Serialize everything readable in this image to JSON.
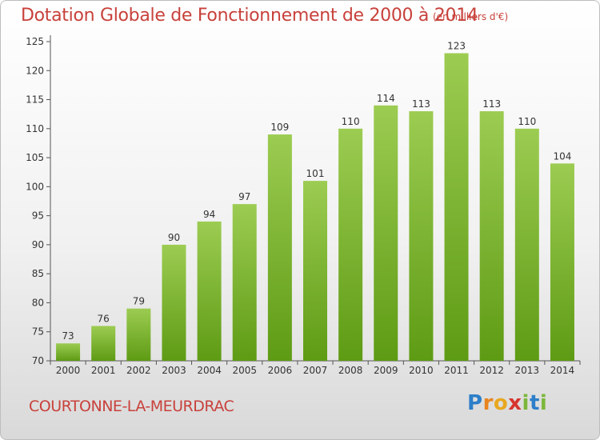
{
  "title": "Dotation Globale de Fonctionnement de 2000 à 2014",
  "unit_note": "(en milliers d'€)",
  "commune": "COURTONNE-LA-MEURDRAC",
  "brand": {
    "letters": [
      "P",
      "r",
      "o",
      "x",
      "i",
      "t",
      "i"
    ],
    "colors": [
      "#2e7fc9",
      "#e8851e",
      "#e8a81e",
      "#d7342f",
      "#7bb73a",
      "#2e7fc9",
      "#7bb73a"
    ]
  },
  "colors": {
    "bar_top": "#9ccc52",
    "bar_bottom": "#5e9b14",
    "text_red": "#c8413b",
    "axis": "#555555"
  },
  "chart_data": {
    "type": "bar",
    "title": "Dotation Globale de Fonctionnement de 2000 à 2014",
    "xlabel": "",
    "ylabel": "",
    "ylim": [
      70,
      125
    ],
    "yticks": [
      70,
      75,
      80,
      85,
      90,
      95,
      100,
      105,
      110,
      115,
      120,
      125
    ],
    "grid": false,
    "categories": [
      "2000",
      "2001",
      "2002",
      "2003",
      "2004",
      "2005",
      "2006",
      "2007",
      "2008",
      "2009",
      "2010",
      "2011",
      "2012",
      "2013",
      "2014"
    ],
    "values": [
      73,
      76,
      79,
      90,
      94,
      97,
      109,
      101,
      110,
      114,
      113,
      123,
      113,
      110,
      104
    ]
  }
}
